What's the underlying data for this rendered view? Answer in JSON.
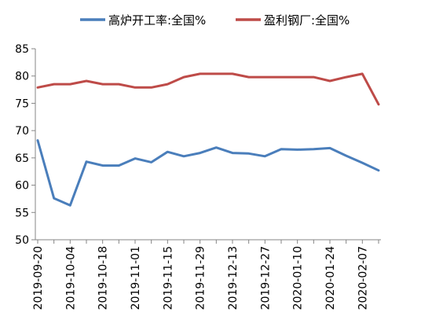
{
  "chart_data": {
    "type": "line",
    "categories": [
      "2019-09-20",
      "2019-09-27",
      "2019-10-04",
      "2019-10-11",
      "2019-10-18",
      "2019-10-25",
      "2019-11-01",
      "2019-11-08",
      "2019-11-15",
      "2019-11-22",
      "2019-11-29",
      "2019-12-06",
      "2019-12-13",
      "2019-12-20",
      "2019-12-27",
      "2020-01-03",
      "2020-01-10",
      "2020-01-17",
      "2020-01-24",
      "2020-01-31",
      "2020-02-07",
      "2020-02-14"
    ],
    "x_tick_labels": [
      "2019-09-20",
      "2019-10-04",
      "2019-10-18",
      "2019-11-01",
      "2019-11-15",
      "2019-11-29",
      "2019-12-13",
      "2019-12-27",
      "2020-01-10",
      "2020-01-24",
      "2020-02-07"
    ],
    "series": [
      {
        "name": "高炉开工率:全国%",
        "color": "#4a7ebb",
        "values": [
          68.2,
          57.6,
          56.3,
          64.3,
          63.6,
          63.6,
          64.9,
          64.2,
          66.1,
          65.3,
          65.9,
          66.9,
          65.9,
          65.8,
          65.3,
          66.6,
          66.5,
          66.6,
          66.8,
          65.4,
          64.1,
          62.7
        ]
      },
      {
        "name": "盈利钢厂:全国%",
        "color": "#be4b48",
        "values": [
          77.9,
          78.5,
          78.5,
          79.1,
          78.5,
          78.5,
          77.9,
          77.9,
          78.5,
          79.8,
          80.4,
          80.4,
          80.4,
          79.8,
          79.8,
          79.8,
          79.8,
          79.8,
          79.1,
          79.8,
          80.4,
          74.8
        ]
      }
    ],
    "ylim": [
      50,
      85
    ],
    "y_ticks": [
      50,
      55,
      60,
      65,
      70,
      75,
      80,
      85
    ],
    "legend_position": "top",
    "grid": false
  }
}
